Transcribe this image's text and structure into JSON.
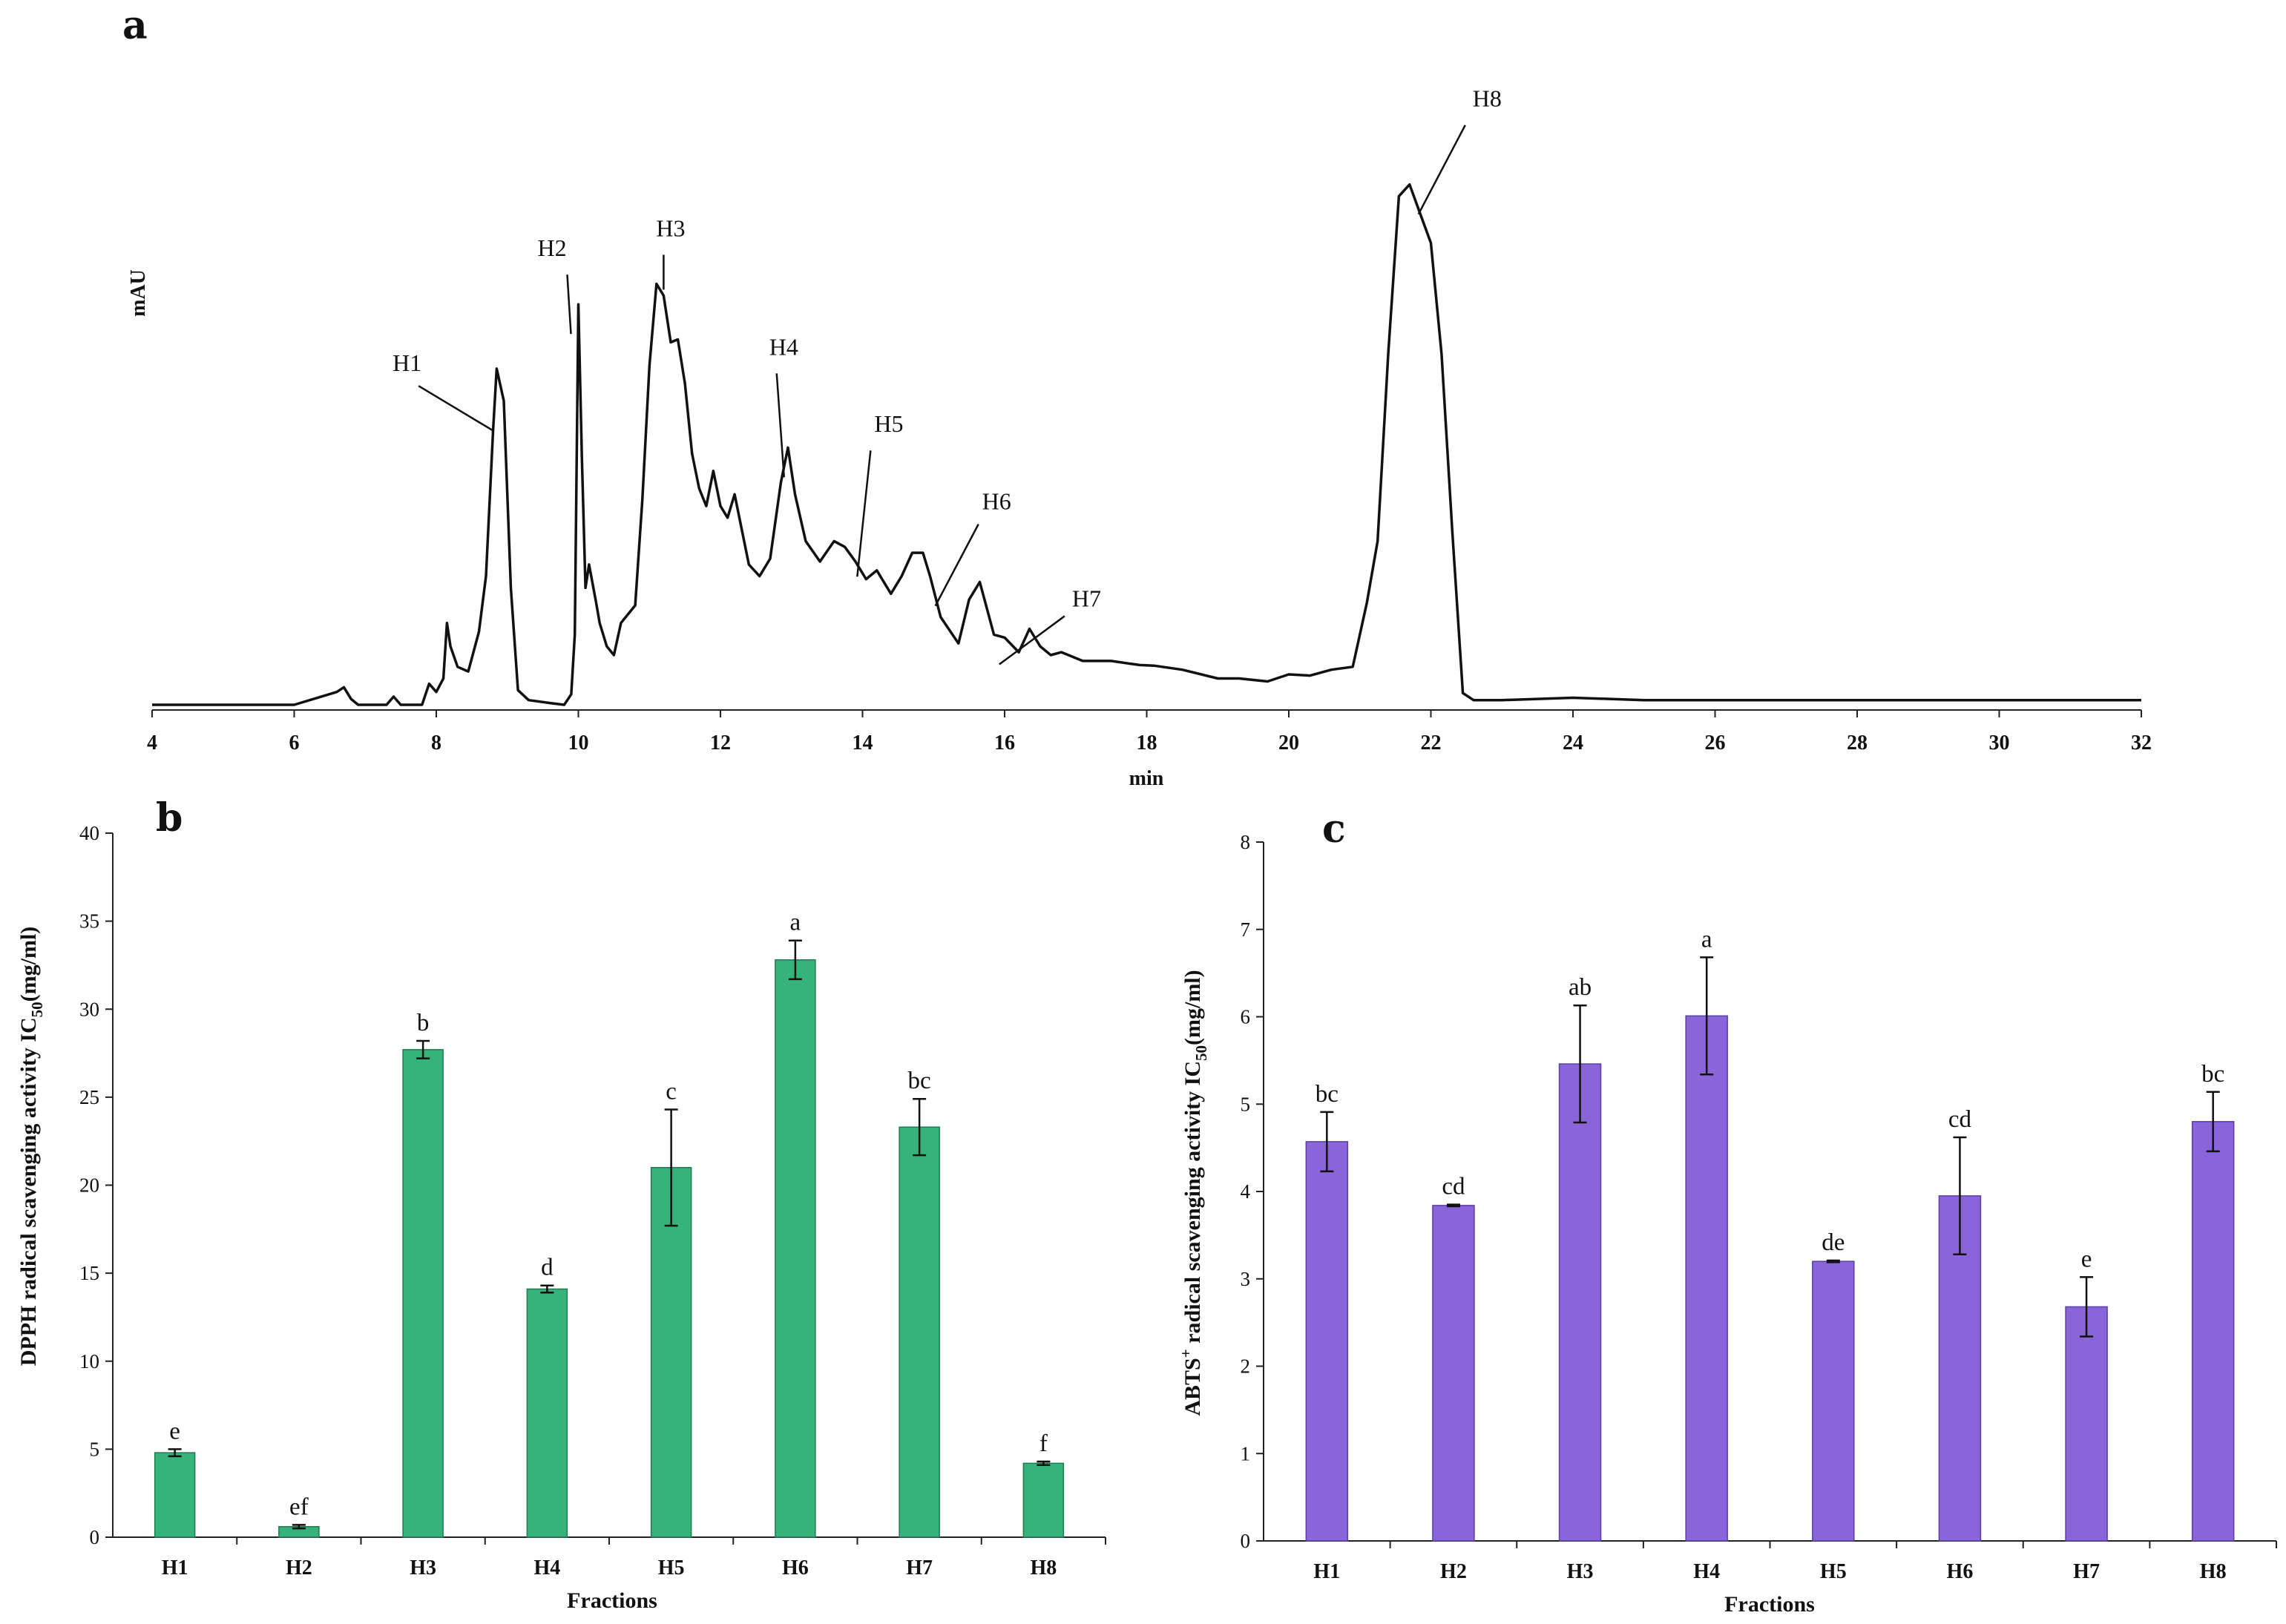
{
  "chart_data": [
    {
      "panel": "a",
      "type": "line",
      "xlabel": "min",
      "ylabel": "mAU",
      "xlim": [
        4,
        32
      ],
      "xticks": [
        "4",
        "6",
        "8",
        "10",
        "12",
        "14",
        "16",
        "18",
        "20",
        "22",
        "24",
        "26",
        "28",
        "30",
        "32"
      ],
      "annotations": [
        {
          "label": "H1",
          "x": 8.9
        },
        {
          "label": "H2",
          "x": 10.0
        },
        {
          "label": "H3",
          "x": 11.2
        },
        {
          "label": "H4",
          "x": 13.0
        },
        {
          "label": "H5",
          "x": 13.8
        },
        {
          "label": "H6",
          "x": 14.9
        },
        {
          "label": "H7",
          "x": 15.8
        },
        {
          "label": "H8",
          "x": 21.7
        }
      ],
      "x": [
        4.0,
        6.0,
        6.6,
        6.7,
        6.8,
        6.9,
        7.3,
        7.4,
        7.5,
        7.8,
        7.9,
        8.0,
        8.1,
        8.15,
        8.2,
        8.3,
        8.45,
        8.6,
        8.7,
        8.8,
        8.85,
        8.95,
        9.05,
        9.15,
        9.3,
        9.6,
        9.8,
        9.9,
        9.95,
        10.0,
        10.05,
        10.1,
        10.15,
        10.25,
        10.3,
        10.4,
        10.5,
        10.6,
        10.8,
        10.9,
        11.0,
        11.1,
        11.2,
        11.3,
        11.4,
        11.5,
        11.6,
        11.7,
        11.8,
        11.9,
        12.0,
        12.1,
        12.2,
        12.3,
        12.4,
        12.55,
        12.7,
        12.85,
        12.95,
        13.05,
        13.2,
        13.4,
        13.6,
        13.75,
        13.9,
        14.05,
        14.2,
        14.4,
        14.55,
        14.7,
        14.85,
        14.95,
        15.1,
        15.35,
        15.5,
        15.65,
        15.85,
        16.0,
        16.2,
        16.35,
        16.5,
        16.65,
        16.8,
        17.1,
        17.5,
        17.9,
        18.1,
        18.5,
        19.0,
        19.3,
        19.7,
        20.0,
        20.3,
        20.6,
        20.9,
        21.1,
        21.25,
        21.4,
        21.55,
        21.7,
        21.85,
        22.0,
        22.15,
        22.3,
        22.45,
        22.6,
        23.0,
        24.0,
        25.0,
        26.0,
        28.0,
        30.0,
        32.0
      ],
      "y": [
        0,
        0,
        2.2,
        3.0,
        1.0,
        0,
        0,
        1.4,
        0,
        0,
        3.6,
        2.2,
        4.5,
        14.0,
        10.0,
        6.5,
        5.7,
        12.5,
        22.0,
        47.0,
        57.5,
        52.0,
        20.0,
        2.5,
        0.8,
        0.3,
        0,
        1.8,
        12.0,
        68.5,
        42.0,
        20.0,
        24.0,
        17.5,
        14.0,
        10.0,
        8.5,
        14.0,
        17.0,
        35.0,
        58.0,
        72.0,
        70.0,
        62.0,
        62.5,
        55.0,
        43.0,
        37.0,
        34.0,
        40.0,
        34.0,
        32.0,
        36.0,
        30.0,
        24.0,
        22.0,
        25.0,
        38.0,
        44.0,
        36.0,
        28.0,
        24.5,
        28.0,
        27.0,
        24.5,
        21.5,
        23.0,
        19.0,
        22.0,
        26.0,
        26.0,
        22.0,
        15.0,
        10.5,
        18.0,
        21.0,
        12.0,
        11.5,
        9.0,
        13.0,
        10.0,
        8.5,
        9.0,
        7.5,
        7.5,
        6.8,
        6.7,
        6.0,
        4.5,
        4.5,
        4.0,
        5.2,
        5.0,
        6.0,
        6.5,
        17.5,
        28.0,
        60.0,
        87.0,
        89.0,
        84.0,
        79.0,
        60.0,
        30.0,
        2.0,
        0.8,
        0.8,
        1.2,
        0.8,
        0.8,
        0.8,
        0.8,
        0.8
      ]
    },
    {
      "panel": "b",
      "type": "bar",
      "title": "",
      "xlabel": "Fractions",
      "ylabel": "DPPH radical scavenging activity IC",
      "ylabel_sub": "50",
      "ylabel_unit": "(mg/ml)",
      "ylim": [
        0,
        40
      ],
      "yticks": [
        "0",
        "5",
        "10",
        "15",
        "20",
        "25",
        "30",
        "35",
        "40"
      ],
      "categories": [
        "H1",
        "H2",
        "H3",
        "H4",
        "H5",
        "H6",
        "H7",
        "H8"
      ],
      "values": [
        4.8,
        0.6,
        27.7,
        14.1,
        21.0,
        32.8,
        23.3,
        4.2
      ],
      "errors": [
        0.2,
        0.1,
        0.5,
        0.2,
        3.3,
        1.1,
        1.6,
        0.1
      ],
      "significance": [
        "e",
        "ef",
        "b",
        "d",
        "c",
        "a",
        "bc",
        "f"
      ],
      "color": "#36b37a"
    },
    {
      "panel": "c",
      "type": "bar",
      "title": "",
      "xlabel": "Fractions",
      "ylabel": "ABTS",
      "ylabel_sup": "+",
      "ylabel_rest": " radical scavenging activity IC",
      "ylabel_sub": "50",
      "ylabel_unit": "(mg/ml)",
      "ylim": [
        0,
        8
      ],
      "yticks": [
        "0",
        "1",
        "2",
        "3",
        "4",
        "5",
        "6",
        "7",
        "8"
      ],
      "categories": [
        "H1",
        "H2",
        "H3",
        "H4",
        "H5",
        "H6",
        "H7",
        "H8"
      ],
      "values": [
        4.57,
        3.84,
        5.46,
        6.01,
        3.2,
        3.95,
        2.68,
        4.8
      ],
      "errors": [
        0.34,
        0.01,
        0.67,
        0.67,
        0.01,
        0.67,
        0.34,
        0.34
      ],
      "significance": [
        "bc",
        "cd",
        "ab",
        "a",
        "de",
        "cd",
        "e",
        "bc"
      ],
      "color": "#8a64d9"
    }
  ]
}
